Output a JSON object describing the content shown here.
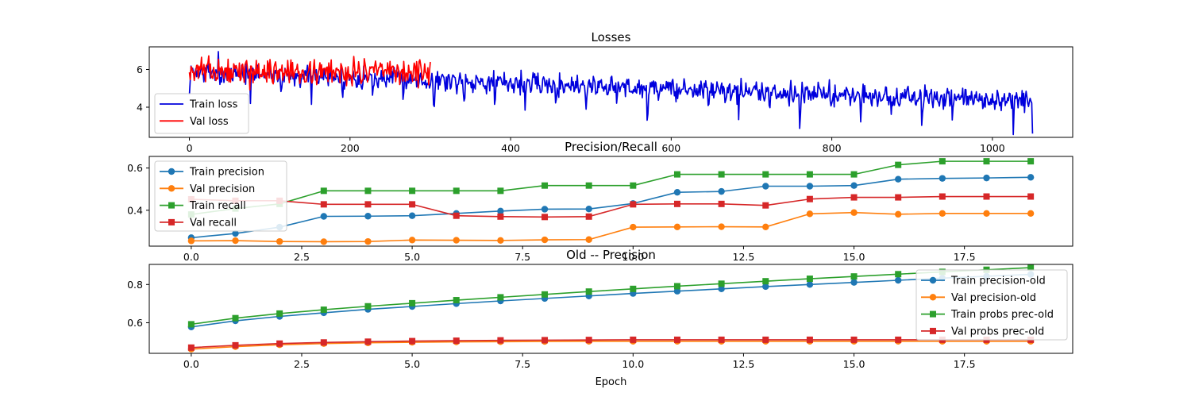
{
  "chart_data": [
    {
      "type": "line",
      "title": "Losses",
      "xlabel": "",
      "ylabel": "",
      "xlim": [
        -50,
        1100
      ],
      "ylim": [
        2.4,
        7.2
      ],
      "xticks": [
        "0",
        "200",
        "400",
        "600",
        "800",
        "1000"
      ],
      "yticks": [
        "4",
        "6"
      ],
      "grid": false,
      "legend_position": "lower-left",
      "series": [
        {
          "name": "Train loss",
          "color": "#0000dd",
          "marker": "none",
          "generator": "noisy",
          "n_points": 1051,
          "x_end": 1050,
          "seed": 7,
          "mean_start": 5.9,
          "mean_end": 4.3,
          "noise": 0.32,
          "dip_period": 38,
          "dip_depth": 1.4,
          "peak_x": 36,
          "peak_y": 6.95,
          "last_y": 2.6
        },
        {
          "name": "Val loss",
          "color": "#ff0000",
          "marker": "none",
          "generator": "noisy",
          "n_points": 300,
          "x_end": 300,
          "seed": 13,
          "mean_start": 5.9,
          "mean_end": 5.85,
          "noise": 0.38,
          "dip_period": 0,
          "dip_depth": 0,
          "peak_x": 15,
          "peak_y": 6.65,
          "last_y": 6.4
        }
      ]
    },
    {
      "type": "line",
      "title": "Precision/Recall",
      "xlabel": "",
      "ylabel": "",
      "xlim": [
        -0.95,
        19.95
      ],
      "ylim": [
        0.23,
        0.655
      ],
      "xticks": [
        "0.0",
        "2.5",
        "5.0",
        "7.5",
        "10.0",
        "12.5",
        "15.0",
        "17.5"
      ],
      "yticks": [
        "0.4",
        "0.6"
      ],
      "grid": false,
      "legend_position": "upper-left",
      "x": [
        0,
        1,
        2,
        3,
        4,
        5,
        6,
        7,
        8,
        9,
        10,
        11,
        12,
        13,
        14,
        15,
        16,
        17,
        18,
        19
      ],
      "series": [
        {
          "name": "Train precision",
          "color": "#1f77b4",
          "marker": "circle",
          "values": [
            0.27,
            0.29,
            0.32,
            0.371,
            0.372,
            0.374,
            0.385,
            0.396,
            0.405,
            0.406,
            0.432,
            0.485,
            0.489,
            0.514,
            0.514,
            0.517,
            0.547,
            0.551,
            0.553,
            0.556
          ]
        },
        {
          "name": "Val precision",
          "color": "#ff7f0e",
          "marker": "circle",
          "values": [
            0.255,
            0.256,
            0.252,
            0.251,
            0.252,
            0.259,
            0.258,
            0.257,
            0.26,
            0.261,
            0.32,
            0.321,
            0.322,
            0.321,
            0.383,
            0.389,
            0.381,
            0.385,
            0.385,
            0.385
          ]
        },
        {
          "name": "Train recall",
          "color": "#2ca02c",
          "marker": "square",
          "values": [
            0.38,
            0.408,
            0.43,
            0.492,
            0.492,
            0.492,
            0.492,
            0.492,
            0.517,
            0.517,
            0.517,
            0.57,
            0.57,
            0.57,
            0.57,
            0.57,
            0.615,
            0.632,
            0.632,
            0.632
          ]
        },
        {
          "name": "Val recall",
          "color": "#d62728",
          "marker": "square",
          "values": [
            0.452,
            0.445,
            0.445,
            0.428,
            0.428,
            0.428,
            0.374,
            0.37,
            0.368,
            0.37,
            0.428,
            0.43,
            0.43,
            0.423,
            0.453,
            0.461,
            0.461,
            0.465,
            0.465,
            0.465
          ]
        }
      ]
    },
    {
      "type": "line",
      "title": "Old -- Precision",
      "xlabel": "Epoch",
      "ylabel": "",
      "xlim": [
        -0.95,
        19.95
      ],
      "ylim": [
        0.44,
        0.905
      ],
      "xticks": [
        "0.0",
        "2.5",
        "5.0",
        "7.5",
        "10.0",
        "12.5",
        "15.0",
        "17.5"
      ],
      "yticks": [
        "0.6",
        "0.8"
      ],
      "grid": false,
      "legend_position": "upper-right",
      "x": [
        0,
        1,
        2,
        3,
        4,
        5,
        6,
        7,
        8,
        9,
        10,
        11,
        12,
        13,
        14,
        15,
        16,
        17,
        18,
        19
      ],
      "series": [
        {
          "name": "Train precision-old",
          "color": "#1f77b4",
          "marker": "circle",
          "values": [
            0.578,
            0.61,
            0.633,
            0.652,
            0.67,
            0.685,
            0.7,
            0.714,
            0.727,
            0.74,
            0.753,
            0.765,
            0.777,
            0.789,
            0.8,
            0.811,
            0.822,
            0.833,
            0.843,
            0.853
          ]
        },
        {
          "name": "Val precision-old",
          "color": "#ff7f0e",
          "marker": "circle",
          "values": [
            0.462,
            0.475,
            0.485,
            0.491,
            0.495,
            0.498,
            0.5,
            0.501,
            0.502,
            0.503,
            0.503,
            0.503,
            0.503,
            0.503,
            0.503,
            0.503,
            0.503,
            0.503,
            0.503,
            0.503
          ]
        },
        {
          "name": "Train probs prec-old",
          "color": "#2ca02c",
          "marker": "square",
          "values": [
            0.592,
            0.624,
            0.648,
            0.668,
            0.686,
            0.702,
            0.718,
            0.733,
            0.748,
            0.763,
            0.777,
            0.791,
            0.804,
            0.817,
            0.83,
            0.842,
            0.854,
            0.866,
            0.877,
            0.888
          ]
        },
        {
          "name": "Val probs prec-old",
          "color": "#d62728",
          "marker": "square",
          "values": [
            0.47,
            0.482,
            0.491,
            0.497,
            0.501,
            0.504,
            0.506,
            0.508,
            0.509,
            0.51,
            0.511,
            0.511,
            0.511,
            0.511,
            0.511,
            0.511,
            0.511,
            0.511,
            0.511,
            0.511
          ]
        }
      ]
    }
  ]
}
